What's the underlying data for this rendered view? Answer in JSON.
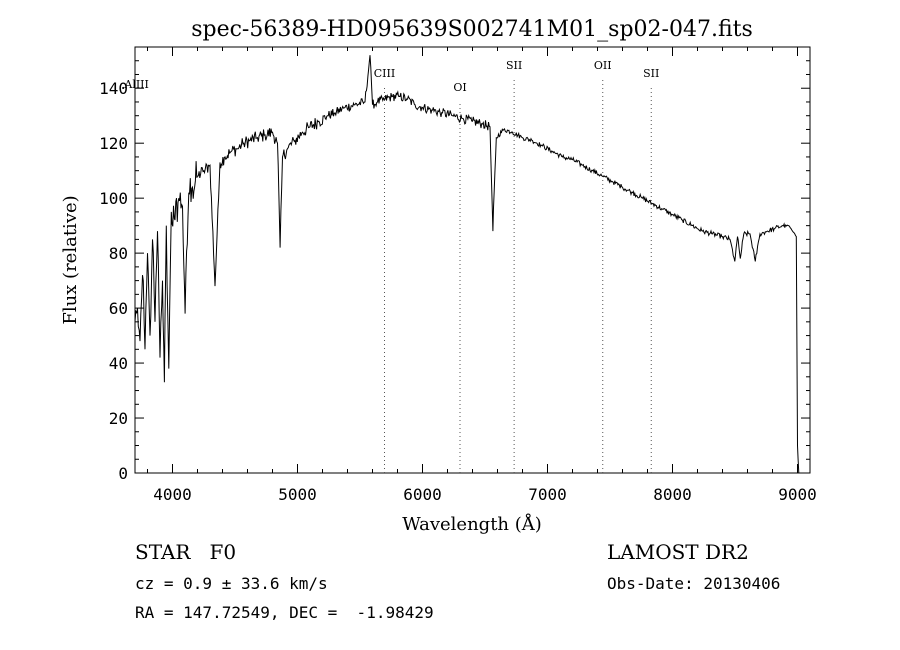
{
  "chart_data": {
    "type": "line",
    "title": "spec-56389-HD095639S002741M01_sp02-047.fits",
    "xlabel": "Wavelength (Å)",
    "ylabel": "Flux (relative)",
    "xlim": [
      3700,
      9100
    ],
    "ylim": [
      0,
      155
    ],
    "xticks": [
      4000,
      5000,
      6000,
      7000,
      8000,
      9000
    ],
    "yticks": [
      0,
      20,
      40,
      60,
      80,
      100,
      120,
      140
    ],
    "grid": false,
    "series": [
      {
        "x": [
          3700,
          3720,
          3740,
          3760,
          3780,
          3800,
          3820,
          3840,
          3860,
          3880,
          3900,
          3920,
          3935,
          3950,
          3970,
          3990,
          4020,
          4050,
          4080,
          4101,
          4130,
          4160,
          4200,
          4250,
          4300,
          4340,
          4380,
          4420,
          4470,
          4520,
          4570,
          4620,
          4680,
          4740,
          4800,
          4840,
          4861,
          4880,
          4920,
          4980,
          5040,
          5100,
          5170,
          5240,
          5300,
          5380,
          5460,
          5540,
          5580,
          5600,
          5640,
          5700,
          5760,
          5820,
          5880,
          5940,
          6000,
          6080,
          6160,
          6240,
          6320,
          6400,
          6480,
          6540,
          6563,
          6590,
          6650,
          6720,
          6800,
          6880,
          6960,
          7040,
          7120,
          7200,
          7280,
          7360,
          7440,
          7520,
          7600,
          7680,
          7760,
          7840,
          7920,
          8000,
          8080,
          8160,
          8240,
          8320,
          8400,
          8460,
          8498,
          8520,
          8542,
          8570,
          8620,
          8662,
          8700,
          8760,
          8820,
          8880,
          8930,
          8960,
          8990,
          9000,
          9010
        ],
        "y": [
          55,
          60,
          48,
          72,
          45,
          80,
          50,
          85,
          55,
          88,
          42,
          70,
          33,
          90,
          38,
          95,
          92,
          100,
          97,
          58,
          102,
          104,
          108,
          110,
          112,
          68,
          113,
          115,
          117,
          118,
          120,
          121,
          122,
          123,
          124,
          120,
          82,
          115,
          118,
          121,
          124,
          126,
          128,
          130,
          131,
          133,
          134,
          135,
          152,
          134,
          135,
          136,
          137,
          137,
          136,
          134,
          133,
          132,
          131,
          130,
          129,
          128,
          127,
          126,
          88,
          122,
          125,
          124,
          122,
          121,
          119,
          117,
          115,
          114,
          112,
          110,
          108,
          106,
          104,
          102,
          100,
          98,
          96,
          94,
          92,
          90,
          88,
          87,
          86,
          85,
          77,
          86,
          78,
          87,
          87,
          77,
          87,
          88,
          89,
          90,
          90,
          88,
          86,
          10,
          0
        ]
      }
    ],
    "annotations": [
      {
        "label": "AlIII",
        "x": 3713,
        "y": 140
      },
      {
        "label": "CIII",
        "x": 5696,
        "y": 144
      },
      {
        "label": "OI",
        "x": 6300,
        "y": 139
      },
      {
        "label": "SII",
        "x": 6733,
        "y": 147
      },
      {
        "label": "OII",
        "x": 7442,
        "y": 147
      },
      {
        "label": "SII",
        "x": 7830,
        "y": 144
      }
    ]
  },
  "info": {
    "object": "STAR   F0",
    "survey": "LAMOST DR2",
    "cz": "cz = 0.9 ± 33.6 km/s",
    "obs_date": "Obs-Date: 20130406",
    "coords": "RA = 147.72549, DEC =  -1.98429"
  }
}
